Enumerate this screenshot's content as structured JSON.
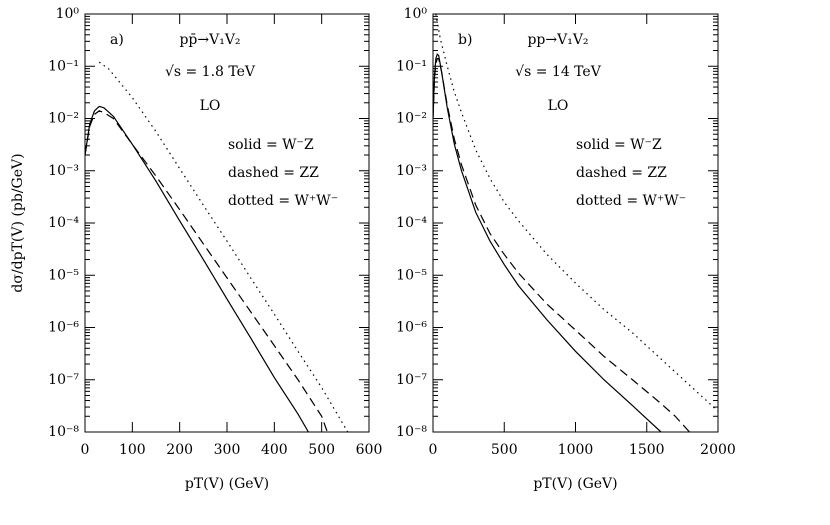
{
  "chart_data": [
    {
      "type": "line",
      "panel_label": "a)",
      "process": "pp̄→V₁V₂",
      "energy": "√s = 1.8 TeV",
      "order": "LO",
      "ylabel": "dσ/dpT(V) (pb/GeV)",
      "xlabel": "pT(V) (GeV)",
      "log_y": true,
      "xlim": [
        0,
        600
      ],
      "xticks": [
        0,
        100,
        200,
        300,
        400,
        500,
        600
      ],
      "ylim": [
        1e-08,
        1
      ],
      "yticks": [
        {
          "value": 1e-08,
          "label": "10⁻⁸"
        },
        {
          "value": 1e-07,
          "label": "10⁻⁷"
        },
        {
          "value": 1e-06,
          "label": "10⁻⁶"
        },
        {
          "value": 1e-05,
          "label": "10⁻⁵"
        },
        {
          "value": 0.0001,
          "label": "10⁻⁴"
        },
        {
          "value": 0.001,
          "label": "10⁻³"
        },
        {
          "value": 0.01,
          "label": "10⁻²"
        },
        {
          "value": 0.1,
          "label": "10⁻¹"
        },
        {
          "value": 1,
          "label": "10⁰"
        }
      ],
      "series": [
        {
          "name": "solid = W⁻Z",
          "line_style": "solid",
          "color": "#000000",
          "x": [
            0,
            10,
            20,
            30,
            40,
            60,
            100,
            150,
            200,
            250,
            300,
            350,
            400,
            450,
            472
          ],
          "values": [
            0.002,
            0.0079,
            0.014,
            0.017,
            0.016,
            0.011,
            0.0032,
            0.00063,
            0.00011,
            2e-05,
            3.5e-06,
            6.3e-07,
            1.1e-07,
            2.2e-08,
            1e-08
          ]
        },
        {
          "name": "dashed = ZZ",
          "line_style": "dashed",
          "color": "#000000",
          "x": [
            0,
            10,
            20,
            30,
            40,
            60,
            100,
            150,
            200,
            250,
            300,
            350,
            400,
            450,
            500,
            512
          ],
          "values": [
            0.002,
            0.0071,
            0.012,
            0.014,
            0.013,
            0.01,
            0.0032,
            0.00079,
            0.00018,
            4e-05,
            8.9e-06,
            2e-06,
            4.5e-07,
            1e-07,
            2e-08,
            1e-08
          ]
        },
        {
          "name": "dotted = W⁺W⁻",
          "line_style": "dotted",
          "color": "#000000",
          "x": [
            30,
            50,
            100,
            150,
            200,
            250,
            300,
            350,
            400,
            450,
            500,
            555
          ],
          "values": [
            0.12,
            0.089,
            0.025,
            0.0056,
            0.0011,
            0.00022,
            4.5e-05,
            8.9e-06,
            1.8e-06,
            3.5e-07,
            7.1e-08,
            1e-08
          ]
        }
      ]
    },
    {
      "type": "line",
      "panel_label": "b)",
      "process": "pp→V₁V₂",
      "energy": "√s = 14 TeV",
      "order": "LO",
      "xlabel": "pT(V) (GeV)",
      "log_y": true,
      "xlim": [
        0,
        2000
      ],
      "xticks": [
        0,
        500,
        1000,
        1500,
        2000
      ],
      "ylim": [
        1e-08,
        1
      ],
      "yticks": [
        {
          "value": 1e-08,
          "label": "10⁻⁸"
        },
        {
          "value": 1e-07,
          "label": "10⁻⁷"
        },
        {
          "value": 1e-06,
          "label": "10⁻⁶"
        },
        {
          "value": 1e-05,
          "label": "10⁻⁵"
        },
        {
          "value": 0.0001,
          "label": "10⁻⁴"
        },
        {
          "value": 0.001,
          "label": "10⁻³"
        },
        {
          "value": 0.01,
          "label": "10⁻²"
        },
        {
          "value": 0.1,
          "label": "10⁻¹"
        },
        {
          "value": 1,
          "label": "10⁰"
        }
      ],
      "series": [
        {
          "name": "solid = W⁻Z",
          "line_style": "solid",
          "color": "#000000",
          "x": [
            0,
            10,
            20,
            30,
            40,
            60,
            100,
            150,
            200,
            300,
            400,
            500,
            600,
            800,
            1000,
            1200,
            1400,
            1600
          ],
          "values": [
            0.01,
            0.063,
            0.14,
            0.17,
            0.16,
            0.079,
            0.016,
            0.0032,
            0.001,
            0.00016,
            4.5e-05,
            1.6e-05,
            6.3e-06,
            1.4e-06,
            3.5e-07,
            1e-07,
            3.2e-08,
            1e-08
          ]
        },
        {
          "name": "dashed = ZZ",
          "line_style": "dashed",
          "color": "#000000",
          "x": [
            0,
            10,
            20,
            30,
            40,
            60,
            100,
            150,
            200,
            300,
            400,
            500,
            600,
            800,
            1000,
            1200,
            1400,
            1600,
            1700,
            1800
          ],
          "values": [
            0.01,
            0.056,
            0.11,
            0.14,
            0.14,
            0.079,
            0.018,
            0.004,
            0.0013,
            0.00022,
            6.3e-05,
            2.5e-05,
            1.1e-05,
            2.8e-06,
            8.9e-07,
            2.8e-07,
            1e-07,
            3.5e-08,
            2e-08,
            1e-08
          ]
        },
        {
          "name": "dotted = W⁺W⁻",
          "line_style": "dotted",
          "color": "#000000",
          "x": [
            20,
            50,
            100,
            150,
            200,
            300,
            400,
            500,
            600,
            800,
            1000,
            1200,
            1400,
            1600,
            1800,
            2000
          ],
          "values": [
            1,
            0.35,
            0.1,
            0.032,
            0.013,
            0.0025,
            0.00071,
            0.00025,
            0.00011,
            2.5e-05,
            7.1e-06,
            2.2e-06,
            7.9e-07,
            2.5e-07,
            7.9e-08,
            2.5e-08
          ]
        }
      ]
    }
  ]
}
